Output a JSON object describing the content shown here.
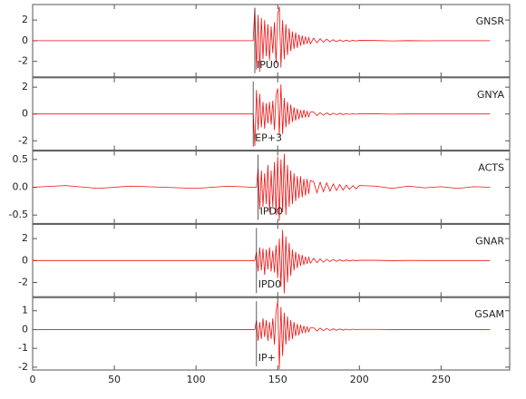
{
  "chart_data": [
    {
      "type": "line",
      "label": "GNSR",
      "color": "#ee1111",
      "pick": {
        "label": "IPU0",
        "x": 136
      },
      "xlim": [
        0,
        292
      ],
      "xticks": [
        0,
        50,
        100,
        150,
        200,
        250
      ],
      "ylim": [
        -3.5,
        3.5
      ],
      "yticks": [
        -2,
        0,
        2
      ],
      "x": [
        0,
        20,
        40,
        60,
        80,
        100,
        120,
        135,
        136,
        137,
        138,
        139,
        140,
        141,
        142,
        143,
        144,
        145,
        146,
        147,
        148,
        149,
        150,
        151,
        152,
        153,
        154,
        155,
        156,
        157,
        158,
        159,
        160,
        161,
        162,
        163,
        164,
        165,
        166,
        167,
        168,
        169,
        170,
        172,
        174,
        176,
        178,
        180,
        182,
        184,
        186,
        188,
        190,
        192,
        194,
        196,
        198,
        200,
        210,
        220,
        230,
        240,
        250,
        260,
        270,
        280
      ],
      "values": [
        0,
        0,
        0,
        0,
        0,
        0,
        0,
        0,
        3.2,
        -2.8,
        2.5,
        -3.0,
        2.2,
        -1.8,
        2.0,
        -1.5,
        1.6,
        -1.9,
        1.4,
        -1.2,
        1.8,
        -2.2,
        2.5,
        3.3,
        -2.6,
        2.0,
        -1.8,
        1.6,
        -1.4,
        1.2,
        -1.0,
        0.9,
        -0.8,
        0.8,
        -0.7,
        0.6,
        -0.5,
        0.5,
        -0.4,
        0.4,
        -0.3,
        0.3,
        -0.3,
        0.25,
        -0.2,
        0.2,
        -0.15,
        0.15,
        -0.1,
        0.1,
        -0.1,
        0.08,
        -0.06,
        0.05,
        -0.05,
        0.04,
        -0.03,
        0.03,
        0.02,
        -0.02,
        0.01,
        -0.01,
        0,
        0,
        0,
        0
      ]
    },
    {
      "type": "line",
      "label": "GNYA",
      "color": "#ee1111",
      "pick": {
        "label": "EP+3",
        "x": 135
      },
      "xlim": [
        0,
        292
      ],
      "xticks": [
        0,
        50,
        100,
        150,
        200,
        250
      ],
      "ylim": [
        -2.7,
        2.7
      ],
      "yticks": [
        -2,
        0,
        2
      ],
      "x": [
        0,
        20,
        40,
        60,
        80,
        100,
        120,
        135,
        136,
        137,
        138,
        139,
        140,
        141,
        142,
        143,
        144,
        145,
        146,
        147,
        148,
        149,
        150,
        151,
        152,
        153,
        154,
        155,
        156,
        157,
        158,
        159,
        160,
        161,
        162,
        163,
        164,
        165,
        166,
        167,
        168,
        169,
        170,
        172,
        174,
        176,
        178,
        180,
        182,
        184,
        186,
        188,
        190,
        192,
        194,
        196,
        198,
        200,
        210,
        220,
        230,
        240,
        250,
        260,
        270,
        280
      ],
      "values": [
        0,
        0,
        0,
        0,
        0,
        0,
        0,
        0,
        -2.4,
        1.8,
        -1.2,
        1.5,
        -1.0,
        0.9,
        -1.1,
        0.8,
        -0.7,
        0.9,
        -0.8,
        1.0,
        -1.2,
        1.4,
        1.9,
        -1.6,
        2.2,
        -1.5,
        1.2,
        -1.0,
        0.9,
        -0.8,
        0.7,
        -0.6,
        0.5,
        -0.5,
        0.4,
        -0.4,
        0.3,
        -0.3,
        0.3,
        -0.25,
        0.2,
        -0.2,
        0.15,
        0.15,
        -0.12,
        0.1,
        -0.1,
        0.08,
        -0.07,
        0.06,
        -0.05,
        0.05,
        -0.04,
        0.03,
        -0.03,
        0.02,
        -0.02,
        0.02,
        0.01,
        -0.01,
        0,
        0,
        0,
        0,
        0,
        0
      ]
    },
    {
      "type": "line",
      "label": "ACTS",
      "color": "#ee1111",
      "pick": {
        "label": "IPD0",
        "x": 138
      },
      "xlim": [
        0,
        292
      ],
      "xticks": [
        0,
        50,
        100,
        150,
        200,
        250
      ],
      "ylim": [
        -0.65,
        0.65
      ],
      "yticks": [
        -0.5,
        {
          "value": 0,
          "label": "0.0"
        },
        0.5
      ],
      "x": [
        0,
        20,
        40,
        60,
        80,
        100,
        120,
        135,
        136,
        137,
        138,
        139,
        140,
        141,
        142,
        143,
        144,
        145,
        146,
        147,
        148,
        149,
        150,
        151,
        152,
        153,
        154,
        155,
        156,
        157,
        158,
        159,
        160,
        161,
        162,
        163,
        164,
        165,
        166,
        167,
        168,
        169,
        170,
        172,
        174,
        176,
        178,
        180,
        182,
        184,
        186,
        188,
        190,
        192,
        194,
        196,
        198,
        200,
        210,
        220,
        230,
        240,
        250,
        260,
        270,
        280
      ],
      "values": [
        0,
        0.03,
        -0.02,
        0.02,
        0,
        -0.02,
        0.02,
        0,
        0,
        0,
        0.35,
        -0.4,
        0.3,
        -0.35,
        0.25,
        -0.3,
        0.4,
        -0.45,
        0.3,
        -0.35,
        0.45,
        -0.5,
        0.55,
        -0.6,
        0.5,
        -0.45,
        0.6,
        -0.5,
        0.4,
        -0.35,
        0.3,
        -0.3,
        0.25,
        -0.25,
        0.2,
        -0.2,
        0.2,
        -0.18,
        0.15,
        -0.15,
        0.15,
        -0.12,
        0.12,
        0.1,
        -0.1,
        0.09,
        -0.08,
        0.08,
        -0.07,
        0.06,
        -0.06,
        0.05,
        -0.05,
        0.04,
        -0.04,
        0.03,
        -0.03,
        0.03,
        0.02,
        -0.02,
        0.02,
        -0.01,
        0.01,
        -0.02,
        0.01,
        0
      ]
    },
    {
      "type": "line",
      "label": "GNAR",
      "color": "#ee1111",
      "pick": {
        "label": "IPD0",
        "x": 137
      },
      "xlim": [
        0,
        292
      ],
      "xticks": [
        0,
        50,
        100,
        150,
        200,
        250
      ],
      "ylim": [
        -3.3,
        3.3
      ],
      "yticks": [
        -2,
        0,
        2
      ],
      "x": [
        0,
        20,
        40,
        60,
        80,
        100,
        120,
        135,
        136,
        137,
        138,
        139,
        140,
        141,
        142,
        143,
        144,
        145,
        146,
        147,
        148,
        149,
        150,
        151,
        152,
        153,
        154,
        155,
        156,
        157,
        158,
        159,
        160,
        161,
        162,
        163,
        164,
        165,
        166,
        167,
        168,
        169,
        170,
        172,
        174,
        176,
        178,
        180,
        182,
        184,
        186,
        188,
        190,
        192,
        194,
        196,
        198,
        200,
        210,
        220,
        230,
        240,
        250,
        260,
        270,
        280
      ],
      "values": [
        0,
        0,
        0,
        0,
        0,
        0,
        0,
        0,
        0,
        0.8,
        -1.0,
        1.2,
        -0.9,
        1.1,
        -1.3,
        1.0,
        -0.8,
        1.2,
        -1.0,
        0.9,
        -1.1,
        1.4,
        -1.6,
        2.0,
        -2.4,
        2.8,
        -3.0,
        2.2,
        -2.0,
        1.6,
        -1.4,
        1.0,
        -0.9,
        0.8,
        -0.7,
        0.6,
        -0.5,
        0.5,
        -0.4,
        0.35,
        -0.3,
        0.3,
        -0.25,
        0.2,
        -0.2,
        0.15,
        -0.15,
        0.12,
        -0.1,
        0.1,
        -0.08,
        0.07,
        -0.06,
        0.05,
        -0.04,
        0.04,
        -0.03,
        0.02,
        0.02,
        -0.01,
        0.01,
        0,
        0,
        0,
        0,
        0
      ]
    },
    {
      "type": "line",
      "label": "GSAM",
      "color": "#ee1111",
      "pick": {
        "label": "IP+",
        "x": 137
      },
      "xlim": [
        0,
        292
      ],
      "xticks": [
        0,
        50,
        100,
        150,
        200,
        250
      ],
      "ylim": [
        -2.15,
        1.7
      ],
      "yticks": [
        -2,
        -1,
        0,
        1
      ],
      "x": [
        0,
        20,
        40,
        60,
        80,
        100,
        120,
        135,
        136,
        137,
        138,
        139,
        140,
        141,
        142,
        143,
        144,
        145,
        146,
        147,
        148,
        149,
        150,
        151,
        152,
        153,
        154,
        155,
        156,
        157,
        158,
        159,
        160,
        161,
        162,
        163,
        164,
        165,
        166,
        167,
        168,
        169,
        170,
        172,
        174,
        176,
        178,
        180,
        182,
        184,
        186,
        188,
        190,
        192,
        194,
        196,
        198,
        200,
        210,
        220,
        230,
        240,
        250,
        260,
        270,
        280
      ],
      "values": [
        0,
        0,
        0,
        0,
        0,
        0,
        0,
        0,
        0,
        0.5,
        -0.6,
        0.4,
        -0.5,
        0.6,
        -0.4,
        0.5,
        -0.6,
        0.4,
        -0.5,
        0.6,
        -0.8,
        1.0,
        1.5,
        -2.1,
        1.2,
        -1.4,
        0.9,
        -0.8,
        0.7,
        -0.6,
        0.5,
        -0.5,
        0.4,
        -0.35,
        0.3,
        -0.3,
        0.25,
        -0.2,
        0.2,
        -0.15,
        0.15,
        -0.12,
        0.1,
        0.1,
        -0.08,
        0.08,
        -0.06,
        0.06,
        -0.05,
        0.04,
        -0.04,
        0.03,
        -0.03,
        0.02,
        -0.02,
        0.02,
        -0.01,
        0.01,
        0.01,
        0,
        0,
        0,
        0,
        0,
        0,
        0
      ]
    }
  ]
}
